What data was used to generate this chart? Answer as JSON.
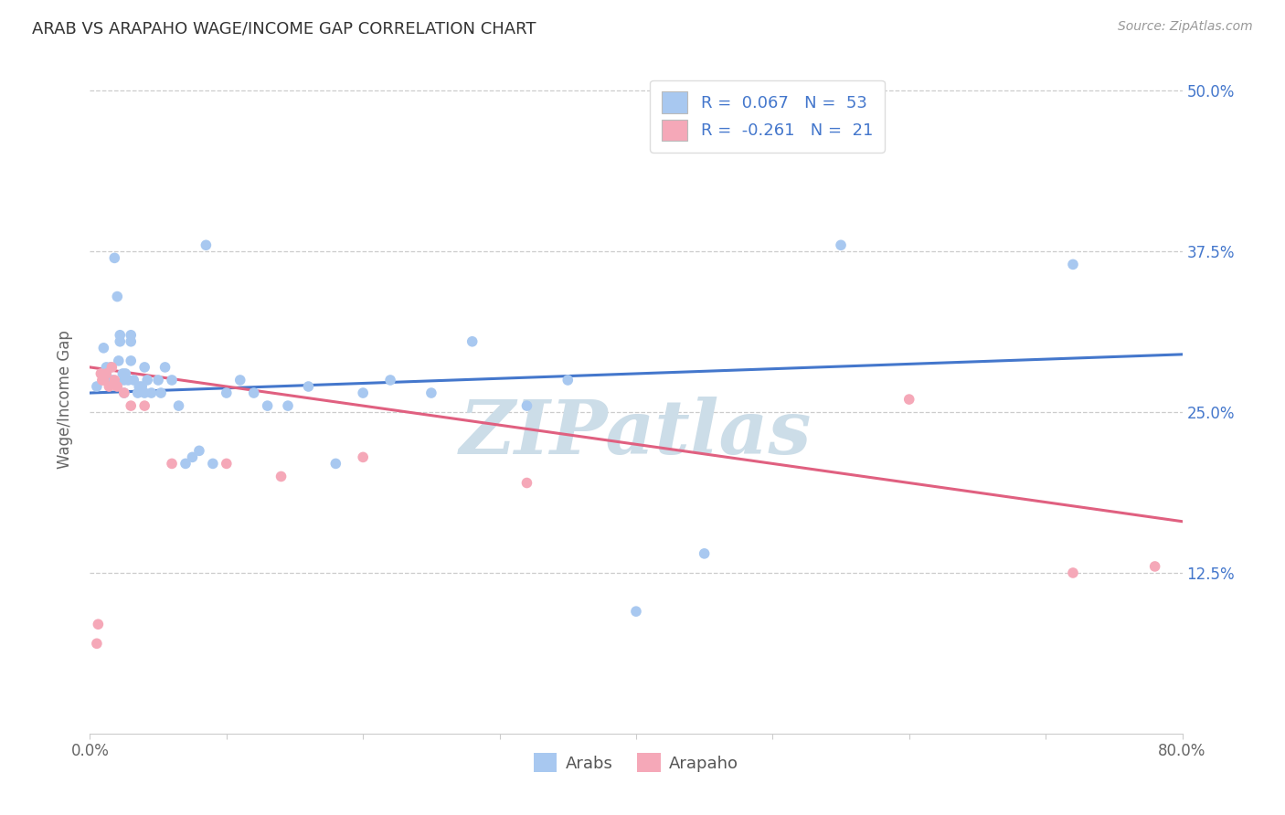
{
  "title": "ARAB VS ARAPAHO WAGE/INCOME GAP CORRELATION CHART",
  "source": "Source: ZipAtlas.com",
  "ylabel": "Wage/Income Gap",
  "xlim": [
    0.0,
    0.8
  ],
  "ylim": [
    0.0,
    0.52
  ],
  "xticks": [
    0.0,
    0.1,
    0.2,
    0.3,
    0.4,
    0.5,
    0.6,
    0.7,
    0.8
  ],
  "xticklabels": [
    "0.0%",
    "",
    "",
    "",
    "",
    "",
    "",
    "",
    "80.0%"
  ],
  "yticks": [
    0.125,
    0.25,
    0.375,
    0.5
  ],
  "yticklabels": [
    "12.5%",
    "25.0%",
    "37.5%",
    "50.0%"
  ],
  "arab_color": "#a8c8f0",
  "arapaho_color": "#f5a8b8",
  "arab_line_color": "#4477cc",
  "arapaho_line_color": "#e06080",
  "watermark_text": "ZIPatlas",
  "watermark_color": "#ccdde8",
  "legend_R_color": "#4477cc",
  "legend_N_color": "#4477cc",
  "legend_R_arab": "0.067",
  "legend_N_arab": "53",
  "legend_R_arapaho": "-0.261",
  "legend_N_arapaho": "21",
  "arab_x": [
    0.005,
    0.01,
    0.012,
    0.015,
    0.016,
    0.018,
    0.02,
    0.021,
    0.022,
    0.022,
    0.024,
    0.025,
    0.025,
    0.026,
    0.028,
    0.03,
    0.03,
    0.03,
    0.032,
    0.035,
    0.036,
    0.038,
    0.04,
    0.04,
    0.042,
    0.045,
    0.05,
    0.052,
    0.055,
    0.06,
    0.065,
    0.07,
    0.075,
    0.08,
    0.085,
    0.09,
    0.1,
    0.11,
    0.12,
    0.13,
    0.145,
    0.16,
    0.18,
    0.2,
    0.22,
    0.25,
    0.28,
    0.32,
    0.35,
    0.4,
    0.45,
    0.55,
    0.72
  ],
  "arab_y": [
    0.27,
    0.3,
    0.285,
    0.285,
    0.275,
    0.37,
    0.34,
    0.29,
    0.31,
    0.305,
    0.28,
    0.275,
    0.265,
    0.28,
    0.275,
    0.31,
    0.305,
    0.29,
    0.275,
    0.265,
    0.27,
    0.27,
    0.285,
    0.265,
    0.275,
    0.265,
    0.275,
    0.265,
    0.285,
    0.275,
    0.255,
    0.21,
    0.215,
    0.22,
    0.38,
    0.21,
    0.265,
    0.275,
    0.265,
    0.255,
    0.255,
    0.27,
    0.21,
    0.265,
    0.275,
    0.265,
    0.305,
    0.255,
    0.275,
    0.095,
    0.14,
    0.38,
    0.365
  ],
  "arapaho_x": [
    0.005,
    0.006,
    0.008,
    0.009,
    0.01,
    0.012,
    0.014,
    0.016,
    0.018,
    0.02,
    0.025,
    0.03,
    0.04,
    0.06,
    0.1,
    0.14,
    0.2,
    0.32,
    0.6,
    0.72,
    0.78
  ],
  "arapaho_y": [
    0.07,
    0.085,
    0.28,
    0.275,
    0.275,
    0.28,
    0.27,
    0.285,
    0.275,
    0.27,
    0.265,
    0.255,
    0.255,
    0.21,
    0.21,
    0.2,
    0.215,
    0.195,
    0.26,
    0.125,
    0.13
  ],
  "background_color": "#ffffff",
  "grid_color": "#cccccc"
}
